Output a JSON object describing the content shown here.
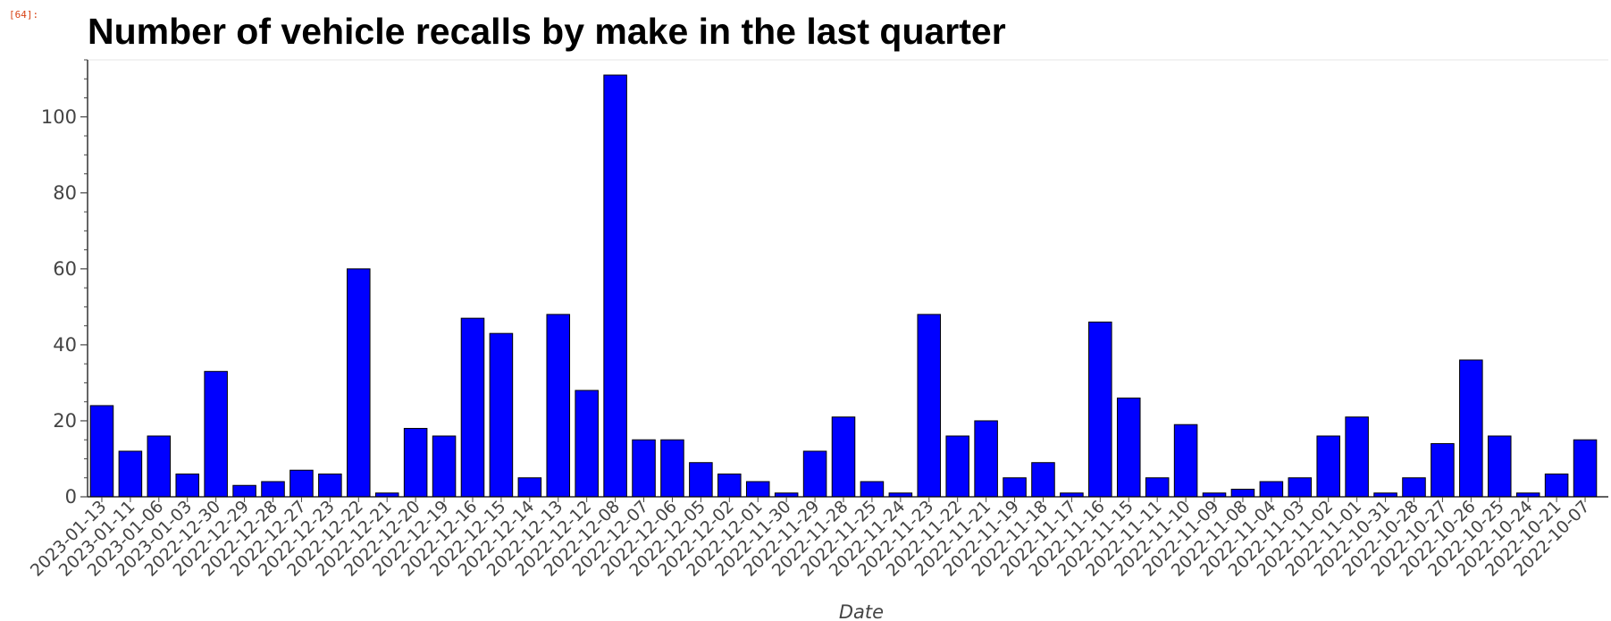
{
  "cell_prompt": "[64]:",
  "chart_data": {
    "type": "bar",
    "title": "Number of vehicle recalls by make in the last quarter",
    "xlabel": "Date",
    "ylabel": "",
    "ylim": [
      0,
      115
    ],
    "yticks": [
      0,
      20,
      40,
      60,
      80,
      100
    ],
    "grid": false,
    "bar_color": "#0000ff",
    "bar_edge_color": "#000000",
    "categories": [
      "2023-01-13",
      "2023-01-11",
      "2023-01-06",
      "2023-01-03",
      "2022-12-30",
      "2022-12-29",
      "2022-12-28",
      "2022-12-27",
      "2022-12-23",
      "2022-12-22",
      "2022-12-21",
      "2022-12-20",
      "2022-12-19",
      "2022-12-16",
      "2022-12-15",
      "2022-12-14",
      "2022-12-13",
      "2022-12-12",
      "2022-12-08",
      "2022-12-07",
      "2022-12-06",
      "2022-12-05",
      "2022-12-02",
      "2022-12-01",
      "2022-11-30",
      "2022-11-29",
      "2022-11-28",
      "2022-11-25",
      "2022-11-24",
      "2022-11-23",
      "2022-11-22",
      "2022-11-21",
      "2022-11-19",
      "2022-11-18",
      "2022-11-17",
      "2022-11-16",
      "2022-11-15",
      "2022-11-11",
      "2022-11-10",
      "2022-11-09",
      "2022-11-08",
      "2022-11-04",
      "2022-11-03",
      "2022-11-02",
      "2022-11-01",
      "2022-10-31",
      "2022-10-28",
      "2022-10-27",
      "2022-10-26",
      "2022-10-25",
      "2022-10-24",
      "2022-10-21",
      "2022-10-07"
    ],
    "values": [
      24,
      12,
      16,
      6,
      33,
      3,
      4,
      7,
      6,
      60,
      1,
      18,
      16,
      47,
      43,
      5,
      48,
      28,
      111,
      15,
      15,
      9,
      6,
      4,
      1,
      12,
      21,
      4,
      1,
      48,
      16,
      20,
      5,
      9,
      1,
      46,
      26,
      5,
      19,
      1,
      2,
      4,
      5,
      16,
      21,
      1,
      5,
      14,
      36,
      16,
      1,
      6,
      15
    ]
  }
}
